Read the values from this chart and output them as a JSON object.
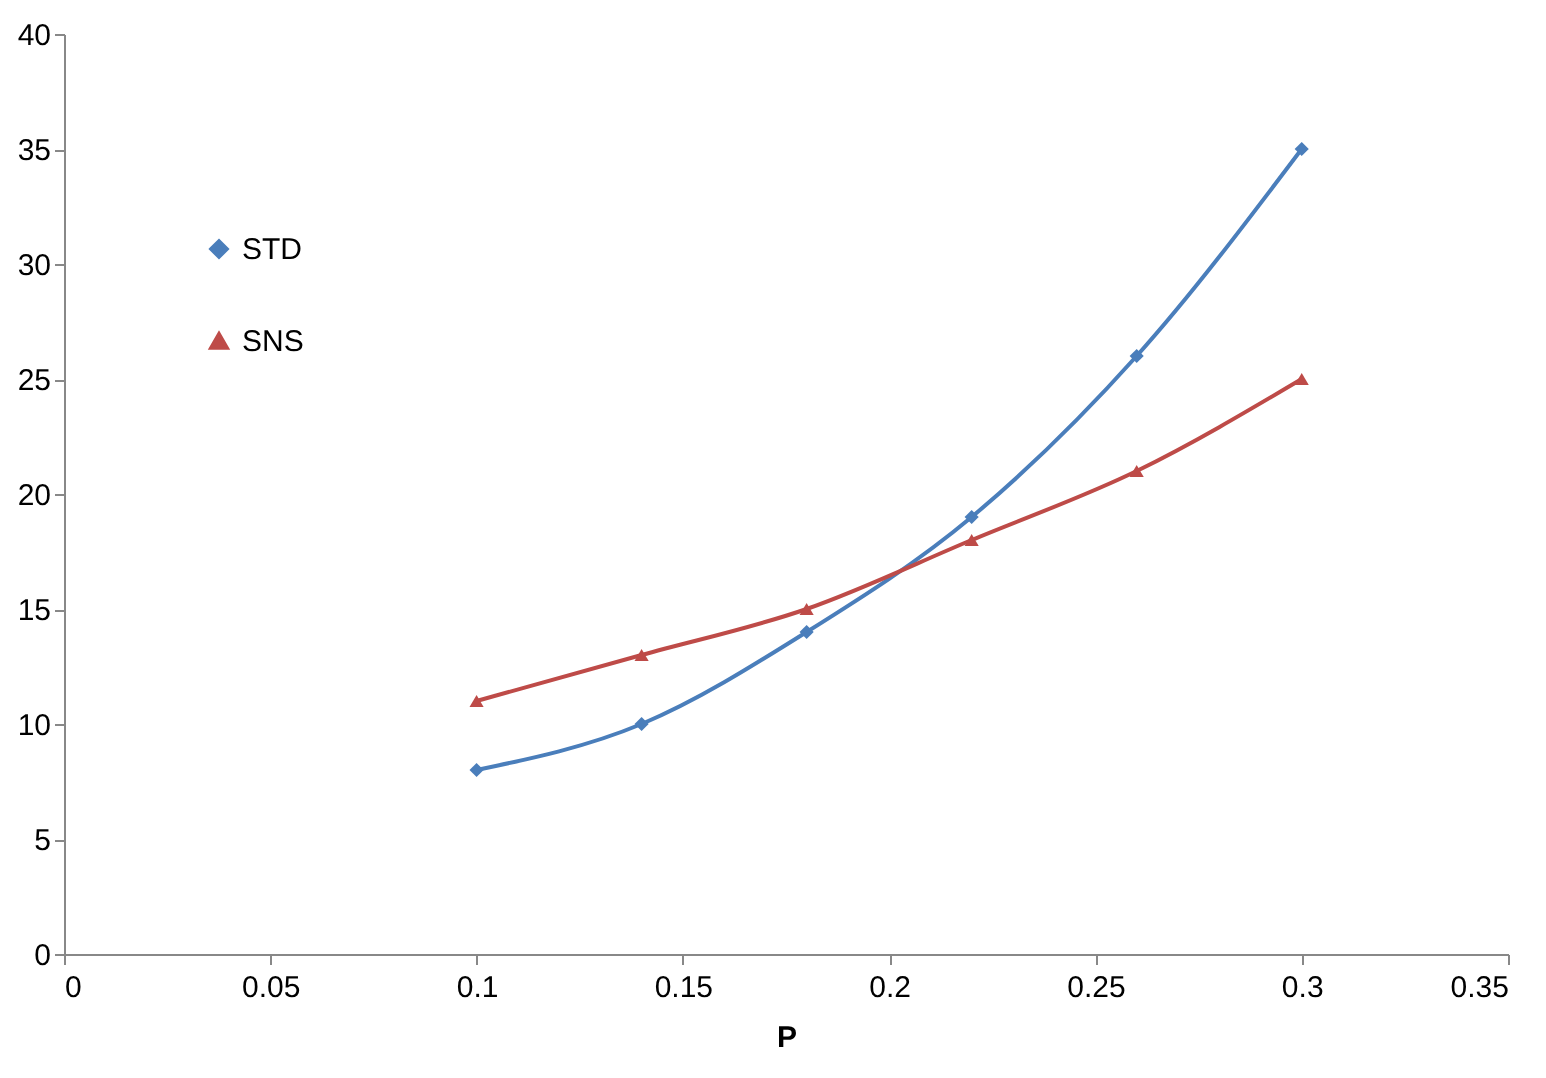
{
  "chart_data": {
    "type": "line",
    "xlabel": "P",
    "x": [
      0.1,
      0.14,
      0.18,
      0.22,
      0.26,
      0.3
    ],
    "series": [
      {
        "name": "STD",
        "color": "#4a7ebb",
        "marker": "diamond",
        "values": [
          8,
          10,
          14,
          19,
          26,
          35
        ]
      },
      {
        "name": "SNS",
        "color": "#be4b48",
        "marker": "triangle",
        "values": [
          11,
          13,
          15,
          18,
          21,
          25
        ]
      }
    ],
    "xlim": [
      0,
      0.35
    ],
    "xticks": [
      0,
      0.05,
      0.1,
      0.15,
      0.2,
      0.25,
      0.3,
      0.35
    ],
    "ylim": [
      0,
      40
    ],
    "yticks": [
      0,
      5,
      10,
      15,
      20,
      25,
      30,
      35,
      40
    ],
    "grid": false,
    "legend": "top left",
    "line_style": "solid"
  }
}
